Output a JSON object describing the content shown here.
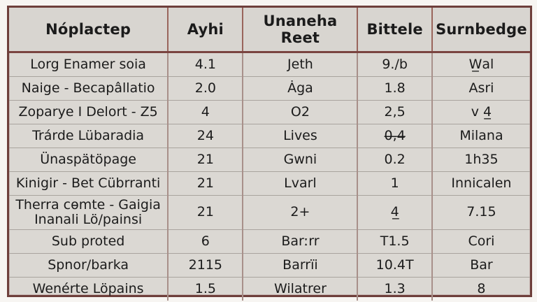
{
  "chart_data": {
    "type": "table",
    "columns": [
      "Nóplactep",
      "Ayhi",
      "Unaneha Reet",
      "Bittele",
      "Surnbedge"
    ],
    "rows": [
      [
        "Lorg Enamer soia",
        "4.1",
        "Jeth",
        "9./b",
        "W̲al"
      ],
      [
        "Naige - Becapâllatio",
        "2.0",
        "Ȧga",
        "1.8",
        "Asri"
      ],
      [
        "Zoparye I Delort - Z5",
        "4",
        "O2",
        "2,5",
        "v 4̲"
      ],
      [
        "Trárde Lübaradia",
        "24",
        "Lives",
        "0̶,̶4̶",
        "Milana"
      ],
      [
        "Ünaspätöpage",
        "21",
        "Gwni",
        "0.2",
        "1h35"
      ],
      [
        "Kinigir - Bet Cübrranti",
        "21",
        "Lvarl",
        "1",
        "Innicalen"
      ],
      [
        "Therra cɵmte - Gaigia\nInanali Lö/painsi",
        "21",
        "2+",
        "4̲",
        "7.15"
      ],
      [
        "Sub proted",
        "6",
        "Barːrr",
        "T1.5",
        "Cori"
      ],
      [
        "Spnor/barka",
        "2115",
        "Barrïi",
        "10.4T",
        "Bar"
      ],
      [
        "Wenérte Löpains",
        "1.5",
        "Wilatrer",
        "1.3",
        "8"
      ]
    ]
  },
  "colors": {
    "page_bg": "#f7f5f2",
    "cell_bg": "#dbd8d3",
    "header_bg": "#d8d5d0",
    "outer_border": "#6e3f3b",
    "header_divider": "#7a4440",
    "column_divider": "#a8908a",
    "row_divider": "#a9a49e",
    "text": "#1b1b1b"
  }
}
